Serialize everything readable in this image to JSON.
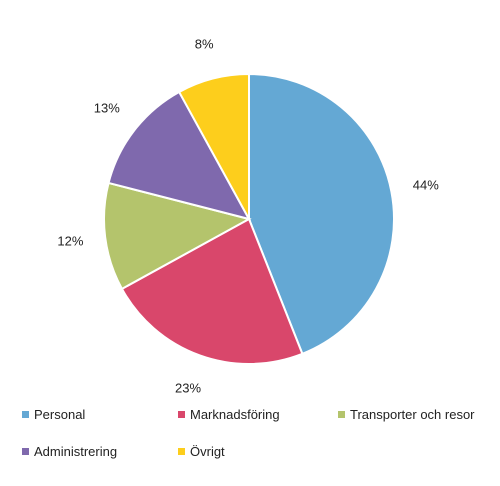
{
  "chart_data": {
    "type": "pie",
    "start_angle_deg": 0,
    "direction": "clockwise",
    "slices": [
      {
        "label": "Personal",
        "value": 44,
        "value_label": "44%",
        "color": "#64a8d4"
      },
      {
        "label": "Marknadsföring",
        "value": 23,
        "value_label": "23%",
        "color": "#d9476b"
      },
      {
        "label": "Transporter och resor",
        "value": 12,
        "value_label": "12%",
        "color": "#b4c46c"
      },
      {
        "label": "Administrering",
        "value": 13,
        "value_label": "13%",
        "color": "#7f69ad"
      },
      {
        "label": "Övrigt",
        "value": 8,
        "value_label": "8%",
        "color": "#fdce1c"
      }
    ],
    "legend_position": "bottom",
    "data_labels": "outside"
  }
}
